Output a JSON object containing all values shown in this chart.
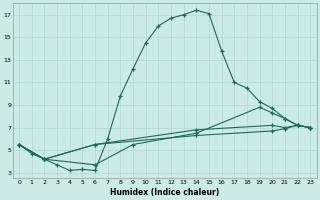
{
  "xlabel": "Humidex (Indice chaleur)",
  "bg_color": "#cceae7",
  "grid_color": "#b0d8d4",
  "line_color": "#1a6b5e",
  "xlim": [
    -0.5,
    23.5
  ],
  "ylim": [
    2.5,
    18.0
  ],
  "xticks": [
    0,
    1,
    2,
    3,
    4,
    5,
    6,
    7,
    8,
    9,
    10,
    11,
    12,
    13,
    14,
    15,
    16,
    17,
    18,
    19,
    20,
    21,
    22,
    23
  ],
  "yticks": [
    3,
    5,
    7,
    9,
    11,
    13,
    15,
    17
  ],
  "series1_x": [
    0,
    1,
    2,
    3,
    4,
    5,
    6,
    7,
    8,
    9,
    10,
    11,
    12,
    13,
    14,
    15,
    16,
    17,
    18,
    19,
    20,
    21,
    22,
    23
  ],
  "series1_y": [
    5.5,
    4.7,
    4.2,
    3.7,
    3.2,
    3.3,
    3.2,
    6.0,
    9.8,
    12.2,
    14.5,
    16.0,
    16.7,
    17.0,
    17.4,
    17.1,
    13.8,
    11.0,
    10.5,
    9.3,
    8.7,
    7.8,
    7.2,
    7.0
  ],
  "series2_x": [
    0,
    2,
    6,
    9,
    14,
    19,
    20,
    21,
    22,
    23
  ],
  "series2_y": [
    5.5,
    4.2,
    3.7,
    5.5,
    6.5,
    8.8,
    8.3,
    7.8,
    7.2,
    7.0
  ],
  "series3_x": [
    0,
    2,
    6,
    14,
    20,
    21,
    22,
    23
  ],
  "series3_y": [
    5.5,
    4.2,
    5.5,
    6.8,
    7.2,
    7.0,
    7.2,
    7.0
  ],
  "series4_x": [
    0,
    2,
    6,
    14,
    20,
    21,
    22,
    23
  ],
  "series4_y": [
    5.5,
    4.2,
    5.5,
    6.3,
    6.7,
    6.9,
    7.2,
    7.0
  ]
}
